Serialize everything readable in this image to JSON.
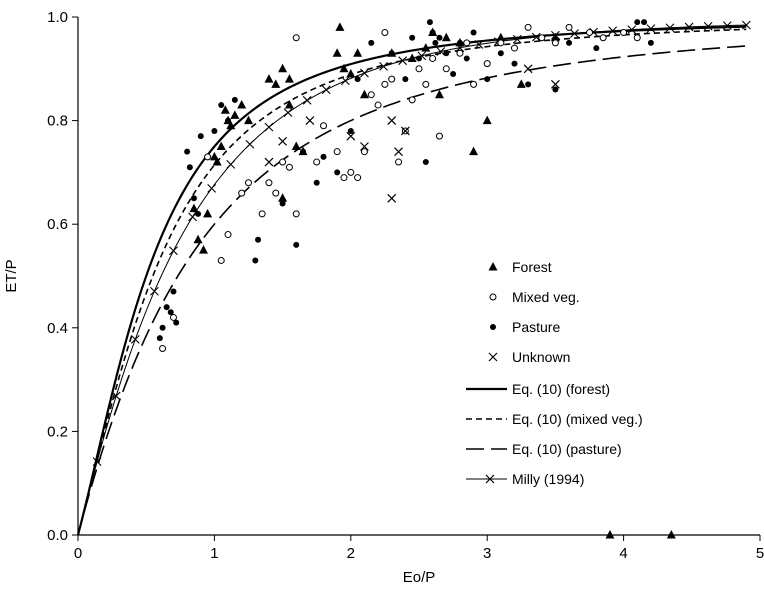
{
  "chart_data": {
    "type": "scatter",
    "title": "",
    "xlabel": "Eo/P",
    "ylabel": "ET/P",
    "xlim": [
      0,
      5
    ],
    "ylim": [
      0,
      1.0
    ],
    "xticks": [
      "0",
      "1",
      "2",
      "3",
      "4",
      "5"
    ],
    "yticks": [
      "0.0",
      "0.2",
      "0.4",
      "0.6",
      "0.8",
      "1.0"
    ],
    "grid": false,
    "legend_position": "right",
    "scatter_series": [
      {
        "name": "Forest",
        "marker": "triangle",
        "points": [
          [
            0.85,
            0.63
          ],
          [
            0.88,
            0.57
          ],
          [
            0.92,
            0.55
          ],
          [
            0.95,
            0.62
          ],
          [
            1.0,
            0.73
          ],
          [
            1.02,
            0.72
          ],
          [
            1.05,
            0.75
          ],
          [
            1.08,
            0.82
          ],
          [
            1.1,
            0.8
          ],
          [
            1.12,
            0.79
          ],
          [
            1.15,
            0.81
          ],
          [
            1.2,
            0.83
          ],
          [
            1.25,
            0.8
          ],
          [
            1.4,
            0.88
          ],
          [
            1.45,
            0.87
          ],
          [
            1.5,
            0.9
          ],
          [
            1.55,
            0.88
          ],
          [
            1.55,
            0.83
          ],
          [
            1.6,
            0.75
          ],
          [
            1.65,
            0.74
          ],
          [
            1.5,
            0.65
          ],
          [
            1.9,
            0.93
          ],
          [
            1.95,
            0.9
          ],
          [
            1.92,
            0.98
          ],
          [
            2.0,
            0.89
          ],
          [
            2.05,
            0.93
          ],
          [
            2.1,
            0.85
          ],
          [
            2.45,
            0.92
          ],
          [
            2.55,
            0.94
          ],
          [
            2.6,
            0.97
          ],
          [
            2.7,
            0.96
          ],
          [
            2.8,
            0.95
          ],
          [
            2.9,
            0.74
          ],
          [
            3.0,
            0.8
          ],
          [
            3.1,
            0.96
          ],
          [
            3.25,
            0.87
          ],
          [
            3.5,
            0.96
          ],
          [
            3.9,
            0.0
          ],
          [
            4.35,
            0.0
          ],
          [
            2.65,
            0.85
          ],
          [
            2.3,
            0.93
          ]
        ]
      },
      {
        "name": "Mixed veg.",
        "marker": "open-circle",
        "points": [
          [
            0.62,
            0.36
          ],
          [
            0.7,
            0.42
          ],
          [
            0.95,
            0.73
          ],
          [
            1.05,
            0.53
          ],
          [
            1.1,
            0.58
          ],
          [
            1.2,
            0.66
          ],
          [
            1.25,
            0.68
          ],
          [
            1.35,
            0.62
          ],
          [
            1.4,
            0.68
          ],
          [
            1.45,
            0.66
          ],
          [
            1.5,
            0.72
          ],
          [
            1.55,
            0.71
          ],
          [
            1.6,
            0.62
          ],
          [
            1.75,
            0.72
          ],
          [
            1.8,
            0.79
          ],
          [
            1.9,
            0.74
          ],
          [
            1.95,
            0.69
          ],
          [
            2.0,
            0.7
          ],
          [
            2.05,
            0.69
          ],
          [
            2.1,
            0.74
          ],
          [
            2.15,
            0.85
          ],
          [
            2.2,
            0.83
          ],
          [
            2.25,
            0.87
          ],
          [
            2.3,
            0.88
          ],
          [
            2.35,
            0.72
          ],
          [
            2.4,
            0.78
          ],
          [
            2.45,
            0.84
          ],
          [
            2.5,
            0.9
          ],
          [
            2.55,
            0.87
          ],
          [
            2.6,
            0.92
          ],
          [
            2.65,
            0.77
          ],
          [
            2.7,
            0.9
          ],
          [
            2.8,
            0.93
          ],
          [
            2.9,
            0.87
          ],
          [
            3.0,
            0.91
          ],
          [
            3.1,
            0.95
          ],
          [
            3.2,
            0.94
          ],
          [
            3.3,
            0.98
          ],
          [
            3.4,
            0.96
          ],
          [
            3.5,
            0.95
          ],
          [
            3.6,
            0.98
          ],
          [
            3.75,
            0.97
          ],
          [
            3.85,
            0.96
          ],
          [
            4.0,
            0.97
          ],
          [
            4.1,
            0.96
          ],
          [
            1.6,
            0.96
          ],
          [
            2.25,
            0.97
          ],
          [
            2.85,
            0.95
          ]
        ]
      },
      {
        "name": "Pasture",
        "marker": "filled-circle",
        "points": [
          [
            0.6,
            0.38
          ],
          [
            0.62,
            0.4
          ],
          [
            0.65,
            0.44
          ],
          [
            0.68,
            0.43
          ],
          [
            0.7,
            0.47
          ],
          [
            0.72,
            0.41
          ],
          [
            0.8,
            0.74
          ],
          [
            0.82,
            0.71
          ],
          [
            0.85,
            0.65
          ],
          [
            0.88,
            0.62
          ],
          [
            0.9,
            0.77
          ],
          [
            1.0,
            0.78
          ],
          [
            1.05,
            0.83
          ],
          [
            1.1,
            0.8
          ],
          [
            1.15,
            0.84
          ],
          [
            1.3,
            0.53
          ],
          [
            1.32,
            0.57
          ],
          [
            1.5,
            0.64
          ],
          [
            1.6,
            0.56
          ],
          [
            1.65,
            0.74
          ],
          [
            1.75,
            0.68
          ],
          [
            1.8,
            0.73
          ],
          [
            1.9,
            0.7
          ],
          [
            2.0,
            0.78
          ],
          [
            2.05,
            0.88
          ],
          [
            2.15,
            0.95
          ],
          [
            2.3,
            0.93
          ],
          [
            2.4,
            0.88
          ],
          [
            2.5,
            0.92
          ],
          [
            2.55,
            0.72
          ],
          [
            2.6,
            0.97
          ],
          [
            2.62,
            0.95
          ],
          [
            2.65,
            0.96
          ],
          [
            2.7,
            0.93
          ],
          [
            2.75,
            0.89
          ],
          [
            2.8,
            0.95
          ],
          [
            2.85,
            0.92
          ],
          [
            2.9,
            0.97
          ],
          [
            3.0,
            0.88
          ],
          [
            3.1,
            0.93
          ],
          [
            3.2,
            0.91
          ],
          [
            3.3,
            0.87
          ],
          [
            3.5,
            0.86
          ],
          [
            3.6,
            0.95
          ],
          [
            3.8,
            0.94
          ],
          [
            4.1,
            0.99
          ],
          [
            4.15,
            0.99
          ],
          [
            4.2,
            0.95
          ],
          [
            2.45,
            0.96
          ],
          [
            2.58,
            0.99
          ]
        ]
      },
      {
        "name": "Unknown",
        "marker": "x",
        "points": [
          [
            1.4,
            0.72
          ],
          [
            1.5,
            0.76
          ],
          [
            1.7,
            0.8
          ],
          [
            2.0,
            0.77
          ],
          [
            2.3,
            0.8
          ],
          [
            2.35,
            0.74
          ],
          [
            2.4,
            0.78
          ],
          [
            2.3,
            0.65
          ],
          [
            2.1,
            0.75
          ],
          [
            3.3,
            0.9
          ],
          [
            3.5,
            0.87
          ]
        ]
      }
    ],
    "line_series": [
      {
        "name": "Eq. (10) (forest)",
        "style": "solid",
        "w": 2.0
      },
      {
        "name": "Eq. (10) (mixed veg.)",
        "style": "short-dash",
        "w": 1.5
      },
      {
        "name": "Eq. (10) (pasture)",
        "style": "long-dash",
        "w": 0.5
      },
      {
        "name": "Milly (1994)",
        "style": "line-with-x-markers"
      }
    ]
  },
  "colors": {
    "ink": "#000000",
    "background": "#ffffff"
  }
}
